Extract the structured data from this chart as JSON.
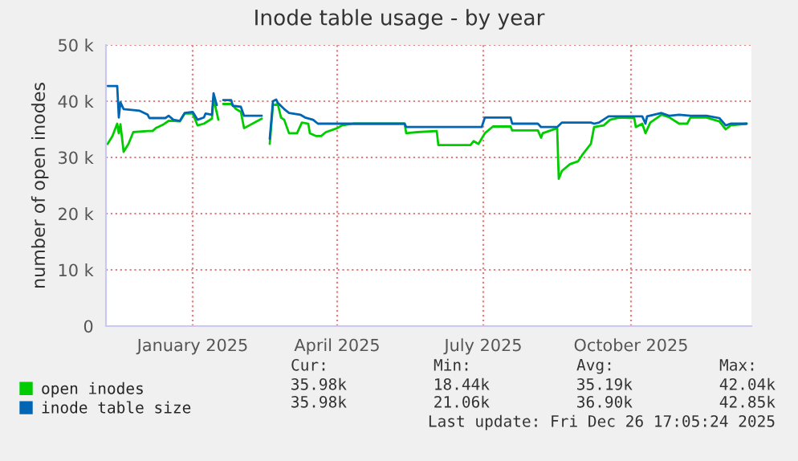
{
  "chart_data": {
    "type": "line",
    "title": "Inode table usage - by year",
    "ylabel": "number of open inodes",
    "xlim": [
      "2024-11-22",
      "2025-12-29"
    ],
    "ylim": [
      0,
      50000
    ],
    "xticks": [
      {
        "value": "2025-01-15",
        "label": "January 2025"
      },
      {
        "value": "2025-04-15",
        "label": "April 2025"
      },
      {
        "value": "2025-07-15",
        "label": "July 2025"
      },
      {
        "value": "2025-10-15",
        "label": "October 2025"
      }
    ],
    "yticks": [
      {
        "value": 0,
        "label": "0"
      },
      {
        "value": 10000,
        "label": "10 k"
      },
      {
        "value": 20000,
        "label": "20 k"
      },
      {
        "value": 30000,
        "label": "30 k"
      },
      {
        "value": 40000,
        "label": "40 k"
      },
      {
        "value": 50000,
        "label": "50 k"
      }
    ],
    "grid": true,
    "legend": "bottom",
    "series": [
      {
        "name": "open inodes",
        "color": "#00cc00",
        "x": [
          "2024-11-23",
          "2024-11-26",
          "2024-11-29",
          "2024-11-30",
          "2024-12-01",
          "2024-12-03",
          "2024-12-06",
          "2024-12-09",
          "2024-12-18",
          "2024-12-21",
          "2024-12-23",
          "2024-12-28",
          "2024-12-31",
          "2025-01-03",
          "2025-01-07",
          "2025-01-10",
          "2025-01-15",
          "2025-01-18",
          "2025-01-22",
          "2025-01-27",
          "2025-01-28",
          "2025-01-31",
          "2025-02-01",
          "2025-02-03",
          "2025-02-08",
          "2025-02-11",
          "2025-02-14",
          "2025-02-16",
          "2025-02-27",
          "2025-03-02",
          "2025-03-04",
          "2025-03-06",
          "2025-03-09",
          "2025-03-11",
          "2025-03-13",
          "2025-03-16",
          "2025-03-21",
          "2025-03-24",
          "2025-03-28",
          "2025-03-29",
          "2025-04-02",
          "2025-04-05",
          "2025-04-08",
          "2025-04-15",
          "2025-04-18",
          "2025-04-25",
          "2025-05-27",
          "2025-05-28",
          "2025-06-04",
          "2025-06-16",
          "2025-06-17",
          "2025-07-07",
          "2025-07-09",
          "2025-07-12",
          "2025-07-16",
          "2025-07-21",
          "2025-08-01",
          "2025-08-02",
          "2025-08-18",
          "2025-08-20",
          "2025-08-21",
          "2025-08-30",
          "2025-08-31",
          "2025-09-02",
          "2025-09-07",
          "2025-09-12",
          "2025-09-15",
          "2025-09-20",
          "2025-09-22",
          "2025-09-28",
          "2025-10-02",
          "2025-10-08",
          "2025-10-17",
          "2025-10-18",
          "2025-10-22",
          "2025-10-24",
          "2025-10-27",
          "2025-11-03",
          "2025-11-08",
          "2025-11-14",
          "2025-11-19",
          "2025-11-21",
          "2025-12-01",
          "2025-12-09",
          "2025-12-13",
          "2025-12-16",
          "2025-12-26"
        ],
        "values": [
          32400,
          33800,
          36000,
          34300,
          35900,
          31000,
          32400,
          34500,
          34700,
          34700,
          35200,
          35900,
          36500,
          36500,
          36400,
          37800,
          37800,
          35700,
          36000,
          36900,
          40500,
          36700,
          null,
          39500,
          39500,
          38600,
          38100,
          35200,
          36900,
          null,
          32400,
          39300,
          39500,
          37100,
          36700,
          34300,
          34300,
          36200,
          36000,
          34300,
          33800,
          33800,
          34500,
          35200,
          35700,
          36000,
          36000,
          34300,
          34500,
          34700,
          32200,
          32200,
          32900,
          32400,
          34300,
          35500,
          35500,
          34800,
          34800,
          33500,
          34300,
          35200,
          26200,
          27600,
          28800,
          29300,
          30600,
          32400,
          35400,
          35700,
          36700,
          37100,
          37000,
          35400,
          36000,
          34300,
          36200,
          37600,
          37100,
          36000,
          36000,
          37100,
          37100,
          36400,
          35000,
          35700,
          36000
        ]
      },
      {
        "name": "inode table size",
        "color": "#0066b3",
        "x": [
          "2024-11-23",
          "2024-11-29",
          "2024-11-30",
          "2024-12-01",
          "2024-12-03",
          "2024-12-13",
          "2024-12-18",
          "2024-12-19",
          "2024-12-29",
          "2024-12-31",
          "2025-01-03",
          "2025-01-07",
          "2025-01-10",
          "2025-01-15",
          "2025-01-18",
          "2025-01-22",
          "2025-01-23",
          "2025-01-27",
          "2025-01-28",
          "2025-01-30",
          "2025-02-01",
          "2025-02-03",
          "2025-02-08",
          "2025-02-09",
          "2025-02-14",
          "2025-02-16",
          "2025-02-27",
          "2025-03-02",
          "2025-03-04",
          "2025-03-06",
          "2025-03-08",
          "2025-03-09",
          "2025-03-13",
          "2025-03-16",
          "2025-03-23",
          "2025-03-26",
          "2025-03-31",
          "2025-04-03",
          "2025-05-27",
          "2025-05-28",
          "2025-07-14",
          "2025-07-16",
          "2025-08-01",
          "2025-08-02",
          "2025-08-18",
          "2025-08-20",
          "2025-08-30",
          "2025-09-02",
          "2025-09-20",
          "2025-09-22",
          "2025-09-25",
          "2025-10-01",
          "2025-10-22",
          "2025-10-24",
          "2025-10-25",
          "2025-11-03",
          "2025-11-08",
          "2025-11-14",
          "2025-11-21",
          "2025-12-01",
          "2025-12-09",
          "2025-12-13",
          "2025-12-16",
          "2025-12-26"
        ],
        "values": [
          42700,
          42700,
          37100,
          39800,
          38600,
          38300,
          37600,
          37000,
          37000,
          37400,
          36700,
          36500,
          37900,
          38100,
          36700,
          37100,
          37800,
          37600,
          41400,
          39300,
          null,
          40200,
          40200,
          39200,
          39000,
          37400,
          37400,
          null,
          33300,
          40000,
          40300,
          39700,
          38600,
          37900,
          37600,
          37100,
          36700,
          36000,
          36000,
          35400,
          35400,
          37100,
          37100,
          36000,
          36000,
          35400,
          35400,
          36200,
          36200,
          36000,
          36200,
          37300,
          37300,
          36000,
          37300,
          37900,
          37400,
          37600,
          37400,
          37400,
          37000,
          35700,
          36000,
          36000
        ]
      }
    ],
    "annotations": [
      "Cur:",
      "Min:",
      "Avg:",
      "Max:",
      "35.98k",
      "18.44k",
      "35.19k",
      "42.04k",
      "35.98k",
      "21.06k",
      "36.90k",
      "42.85k",
      "Last update: Fri Dec 26 17:05:24 2025"
    ]
  }
}
